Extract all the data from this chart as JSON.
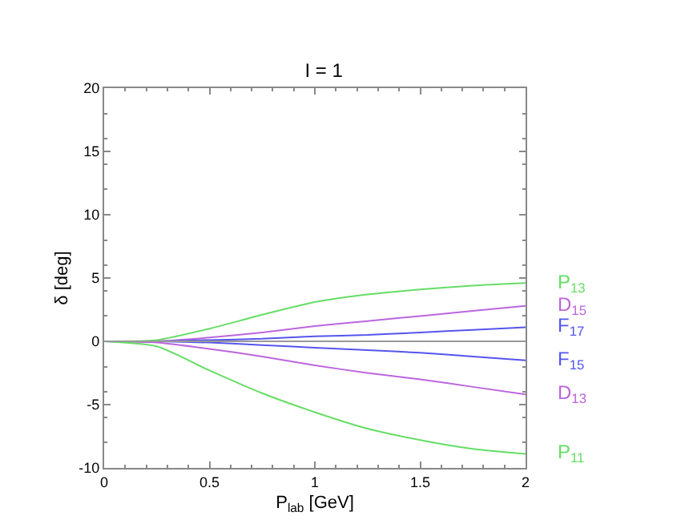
{
  "chart_data": {
    "type": "line",
    "title": "I = 1",
    "xlabel": "P$_{lab}$ [GeV]",
    "ylabel": "δ [deg]",
    "x": [
      0,
      0.25,
      0.5,
      0.75,
      1,
      1.25,
      1.5,
      1.75,
      2
    ],
    "series": [
      {
        "name": "P$_{13}$",
        "color": "#66dd66",
        "values": [
          0,
          0.1,
          1.0,
          2.1,
          3.1,
          3.7,
          4.1,
          4.4,
          4.6
        ]
      },
      {
        "name": "D$_{15}$",
        "color": "#bb66dd",
        "values": [
          0,
          0,
          0.3,
          0.7,
          1.2,
          1.6,
          2.0,
          2.4,
          2.8
        ]
      },
      {
        "name": "F$_{17}$",
        "color": "#5555ee",
        "values": [
          0,
          0,
          0.1,
          0.2,
          0.4,
          0.5,
          0.7,
          0.9,
          1.1
        ]
      },
      {
        "name": "F$_{15}$",
        "color": "#5555ee",
        "values": [
          0,
          0,
          -0.1,
          -0.3,
          -0.5,
          -0.7,
          -0.9,
          -1.2,
          -1.5
        ]
      },
      {
        "name": "D$_{13}$",
        "color": "#bb66dd",
        "values": [
          0,
          -0.1,
          -0.6,
          -1.2,
          -1.9,
          -2.5,
          -3.0,
          -3.6,
          -4.2
        ]
      },
      {
        "name": "P$_{11}$",
        "color": "#66dd66",
        "values": [
          0,
          -0.4,
          -2.3,
          -4.1,
          -5.6,
          -6.9,
          -7.8,
          -8.5,
          -8.9
        ]
      }
    ],
    "ref_lines": [
      {
        "axis": "y",
        "value": 0,
        "color": "#999999"
      }
    ],
    "xlim": [
      0,
      2
    ],
    "xticks": [
      0,
      0.5,
      1,
      1.5,
      2
    ],
    "ylim": [
      -10,
      20
    ],
    "yticks": [
      -10,
      -5,
      0,
      5,
      10,
      15,
      20
    ],
    "legend": false,
    "marker": "none",
    "line_style": "solid"
  }
}
